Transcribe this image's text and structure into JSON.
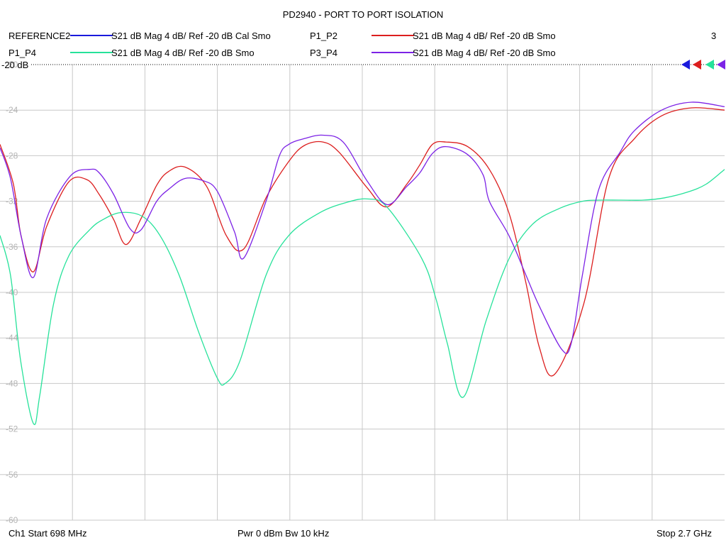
{
  "chart_data": {
    "type": "line",
    "title": "PD2940 - PORT TO PORT ISOLATION",
    "trace_number": "3",
    "reference_label": "-20 dB",
    "footer": {
      "start": "Ch1  Start  698 MHz",
      "power": "Pwr  0 dBm  Bw  10 kHz",
      "stop": "Stop  2.7 GHz"
    },
    "x_unit": "MHz",
    "xlim": [
      698,
      2700
    ],
    "ylim": [
      -60,
      -20
    ],
    "grid": true,
    "y_ticks": [
      -20,
      -24,
      -28,
      -32,
      -36,
      -40,
      -44,
      -48,
      -52,
      -56,
      -60
    ],
    "y_tick_labels": [
      "-20",
      "-24",
      "-28",
      "-32",
      "-36",
      "-40",
      "-44",
      "-48",
      "-52",
      "-56",
      "-60"
    ],
    "series": [
      {
        "name": "REFERENCE2",
        "desc": "S21  dB Mag  4 dB/ Ref -20 dB  Cal Smo",
        "color": "#1a1adc",
        "values": []
      },
      {
        "name": "P1_P2",
        "desc": "S21  dB Mag  4 dB/ Ref -20 dB  Smo",
        "color": "#dc1e1e",
        "x": [
          698,
          735,
          756,
          790,
          827,
          888,
          938,
          972,
          1012,
          1046,
          1088,
          1131,
          1163,
          1209,
          1269,
          1323,
          1371,
          1433,
          1496,
          1539,
          1590,
          1635,
          1712,
          1766,
          1822,
          1858,
          1893,
          1930,
          1990,
          2050,
          2104,
          2150,
          2188,
          2230,
          2311,
          2380,
          2451,
          2526,
          2609,
          2700
        ],
        "values": [
          -27.0,
          -30.5,
          -35.0,
          -38.2,
          -34.2,
          -30.3,
          -30.1,
          -31.4,
          -33.6,
          -35.8,
          -33.5,
          -30.6,
          -29.4,
          -29.0,
          -30.7,
          -35.0,
          -36.2,
          -31.7,
          -28.5,
          -27.1,
          -26.8,
          -27.7,
          -30.8,
          -32.5,
          -30.5,
          -28.8,
          -27.0,
          -26.8,
          -27.2,
          -29.2,
          -33.0,
          -39.0,
          -44.8,
          -47.2,
          -41.0,
          -30.0,
          -26.5,
          -24.5,
          -23.8,
          -24.0
        ]
      },
      {
        "name": "P1_P4",
        "desc": "S21  dB Mag  4 dB/ Ref -20 dB  Smo",
        "color": "#26e29a",
        "x": [
          698,
          727,
          755,
          790,
          808,
          846,
          888,
          946,
          983,
          1031,
          1090,
          1140,
          1193,
          1247,
          1298,
          1320,
          1361,
          1433,
          1496,
          1582,
          1656,
          1714,
          1767,
          1863,
          1902,
          1934,
          1978,
          2041,
          2105,
          2170,
          2246,
          2307,
          2352,
          2411,
          2475,
          2534,
          2597,
          2649,
          2700
        ],
        "values": [
          -35.0,
          -38.5,
          -46.0,
          -51.5,
          -49.0,
          -41.0,
          -36.8,
          -34.5,
          -33.6,
          -33.0,
          -33.3,
          -35.0,
          -38.5,
          -43.5,
          -47.5,
          -48.0,
          -46.0,
          -38.5,
          -35.0,
          -33.0,
          -32.1,
          -31.8,
          -32.5,
          -37.0,
          -40.5,
          -44.5,
          -49.2,
          -42.5,
          -37.0,
          -34.0,
          -32.6,
          -32.0,
          -31.9,
          -31.9,
          -31.9,
          -31.7,
          -31.2,
          -30.5,
          -29.2
        ]
      },
      {
        "name": "P3_P4",
        "desc": "S21  dB Mag  4 dB/ Ref -20 dB  Smo",
        "color": "#7c22e6",
        "x": [
          698,
          727,
          756,
          790,
          827,
          892,
          946,
          972,
          1012,
          1057,
          1088,
          1131,
          1166,
          1209,
          1260,
          1298,
          1346,
          1371,
          1433,
          1470,
          1496,
          1539,
          1590,
          1646,
          1712,
          1768,
          1822,
          1858,
          1893,
          1930,
          1990,
          2033,
          2050,
          2104,
          2150,
          2188,
          2250,
          2276,
          2307,
          2352,
          2411,
          2451,
          2526,
          2609,
          2700
        ],
        "values": [
          -27.3,
          -30.0,
          -35.0,
          -38.7,
          -33.5,
          -29.8,
          -29.2,
          -29.5,
          -31.4,
          -34.4,
          -34.5,
          -32.0,
          -30.9,
          -30.0,
          -30.2,
          -31.1,
          -34.7,
          -37.0,
          -32.0,
          -28.0,
          -27.0,
          -26.5,
          -26.2,
          -26.8,
          -30.2,
          -32.3,
          -30.7,
          -29.5,
          -27.8,
          -27.2,
          -27.9,
          -29.7,
          -32.0,
          -35.0,
          -38.4,
          -41.2,
          -45.0,
          -44.5,
          -38.5,
          -31.0,
          -27.7,
          -25.8,
          -24.0,
          -23.3,
          -23.7
        ]
      }
    ]
  }
}
